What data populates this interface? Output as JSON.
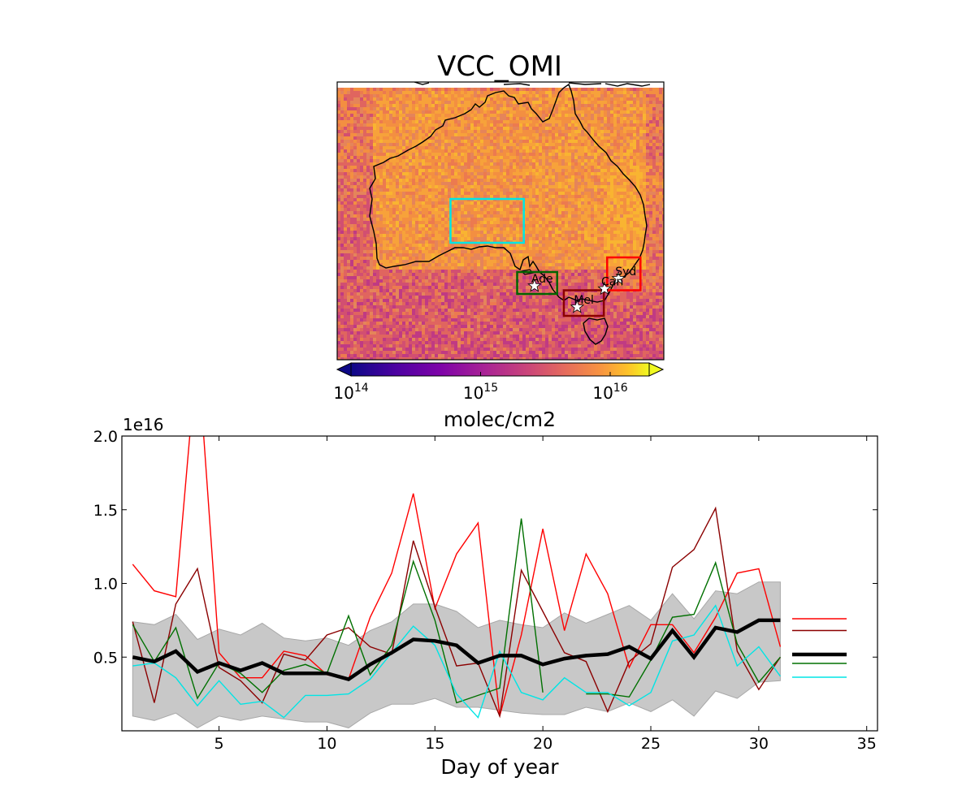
{
  "map": {
    "title": "VCC_OMI",
    "colorbar": {
      "label": "molec/cm2",
      "ticks": [
        {
          "base": "10",
          "exp": "14",
          "value": 100000000000000.0
        },
        {
          "base": "10",
          "exp": "15",
          "value": 1000000000000000.0
        },
        {
          "base": "10",
          "exp": "16",
          "value": 1e+16
        }
      ],
      "range": [
        100000000000000.0,
        2e+16
      ],
      "colormap": "plasma",
      "scale": "log"
    },
    "cities": [
      {
        "name": "Syd",
        "lon": 151.2,
        "lat": -33.9
      },
      {
        "name": "Can",
        "lon": 149.1,
        "lat": -35.3
      },
      {
        "name": "Ade",
        "lon": 138.6,
        "lat": -34.9
      },
      {
        "name": "Mel",
        "lon": 145.0,
        "lat": -37.8
      }
    ],
    "regions": [
      {
        "color": "#00e5e5",
        "lon": [
          126,
          137
        ],
        "lat": [
          -29,
          -23
        ]
      },
      {
        "color": "#006400",
        "lon": [
          136,
          142
        ],
        "lat": [
          -36,
          -33
        ]
      },
      {
        "color": "#ff0000",
        "lon": [
          149.5,
          154.5
        ],
        "lat": [
          -35.5,
          -31
        ]
      },
      {
        "color": "#8b0000",
        "lon": [
          143,
          149
        ],
        "lat": [
          -39,
          -35.5
        ]
      }
    ],
    "extent": {
      "lon": [
        109,
        158
      ],
      "lat": [
        -45,
        -7
      ]
    }
  },
  "chart_data": {
    "type": "line",
    "xlabel": "Day of year",
    "ylabel": "",
    "offset_label": "1e16",
    "xlim": [
      0.5,
      35.5
    ],
    "ylim": [
      0,
      2.0
    ],
    "xticks": [
      5,
      10,
      15,
      20,
      25,
      30,
      35
    ],
    "yticks": [
      0.5,
      1.0,
      1.5,
      2.0
    ],
    "x": [
      1,
      2,
      3,
      4,
      5,
      6,
      7,
      8,
      9,
      10,
      11,
      12,
      13,
      14,
      15,
      16,
      17,
      18,
      19,
      20,
      21,
      22,
      23,
      24,
      25,
      26,
      27,
      28,
      29,
      30,
      31
    ],
    "band": {
      "upper": [
        0.74,
        0.72,
        0.79,
        0.62,
        0.69,
        0.65,
        0.73,
        0.63,
        0.61,
        0.63,
        0.58,
        0.68,
        0.74,
        0.86,
        0.86,
        0.81,
        0.7,
        0.75,
        0.72,
        0.7,
        0.8,
        0.73,
        0.79,
        0.85,
        0.75,
        0.93,
        0.76,
        0.95,
        0.93,
        1.01,
        1.01
      ],
      "lower": [
        0.1,
        0.07,
        0.12,
        0.02,
        0.1,
        0.07,
        0.1,
        0.08,
        0.06,
        0.06,
        0.02,
        0.12,
        0.18,
        0.18,
        0.22,
        0.16,
        0.16,
        0.14,
        0.12,
        0.11,
        0.11,
        0.16,
        0.13,
        0.19,
        0.13,
        0.21,
        0.1,
        0.27,
        0.22,
        0.33,
        0.34
      ],
      "color": "#c8c8c8"
    },
    "series": [
      {
        "color": "#ff0000",
        "width": 1.4,
        "values": [
          1.13,
          0.95,
          0.91,
          2.6,
          0.53,
          0.36,
          0.36,
          0.54,
          0.51,
          0.38,
          0.35,
          0.77,
          1.07,
          1.61,
          0.83,
          1.2,
          1.41,
          0.1,
          0.65,
          1.37,
          0.68,
          1.2,
          0.93,
          0.43,
          0.72,
          0.72,
          0.53,
          0.77,
          1.07,
          1.1,
          0.57
        ]
      },
      {
        "color": "#8b0000",
        "width": 1.4,
        "values": [
          0.74,
          0.19,
          0.86,
          1.1,
          0.43,
          0.34,
          0.19,
          0.52,
          0.48,
          0.65,
          0.7,
          0.57,
          0.52,
          1.29,
          0.84,
          0.44,
          0.46,
          0.1,
          1.09,
          0.81,
          0.53,
          0.47,
          0.13,
          0.47,
          0.59,
          1.11,
          1.23,
          1.51,
          0.54,
          0.28,
          0.5
        ]
      },
      {
        "color": "#007000",
        "width": 1.4,
        "values": [
          0.72,
          0.47,
          0.7,
          0.22,
          0.46,
          0.39,
          0.26,
          0.41,
          0.45,
          0.39,
          0.78,
          0.38,
          0.58,
          1.15,
          0.75,
          0.19,
          0.24,
          0.29,
          1.44,
          0.26,
          null,
          0.25,
          0.25,
          0.23,
          0.48,
          0.77,
          0.79,
          1.14,
          0.59,
          0.33,
          0.5
        ]
      },
      {
        "color": "#00e5e5",
        "width": 1.4,
        "values": [
          0.44,
          0.46,
          0.36,
          0.17,
          0.34,
          0.18,
          0.2,
          0.09,
          0.24,
          0.24,
          0.25,
          0.35,
          0.53,
          0.71,
          0.58,
          0.25,
          0.09,
          0.54,
          0.26,
          0.21,
          0.36,
          0.26,
          0.26,
          0.17,
          0.26,
          0.61,
          0.65,
          0.85,
          0.44,
          0.57,
          0.37
        ]
      },
      {
        "color": "#000000",
        "width": 4.5,
        "values": [
          0.5,
          0.47,
          0.54,
          0.4,
          0.46,
          0.41,
          0.46,
          0.39,
          0.39,
          0.39,
          0.35,
          0.45,
          0.53,
          0.62,
          0.61,
          0.58,
          0.46,
          0.51,
          0.51,
          0.45,
          0.49,
          0.51,
          0.52,
          0.57,
          0.49,
          0.68,
          0.5,
          0.7,
          0.67,
          0.75,
          0.75
        ]
      }
    ],
    "legend_handles": [
      {
        "color": "#ff0000",
        "width": 1.4
      },
      {
        "color": "#8b0000",
        "width": 1.4
      },
      {
        "color": "#000000",
        "width": 4.5
      },
      {
        "color": "#007000",
        "width": 1.4
      },
      {
        "color": "#00e5e5",
        "width": 1.4
      }
    ],
    "legend_position": "right"
  }
}
